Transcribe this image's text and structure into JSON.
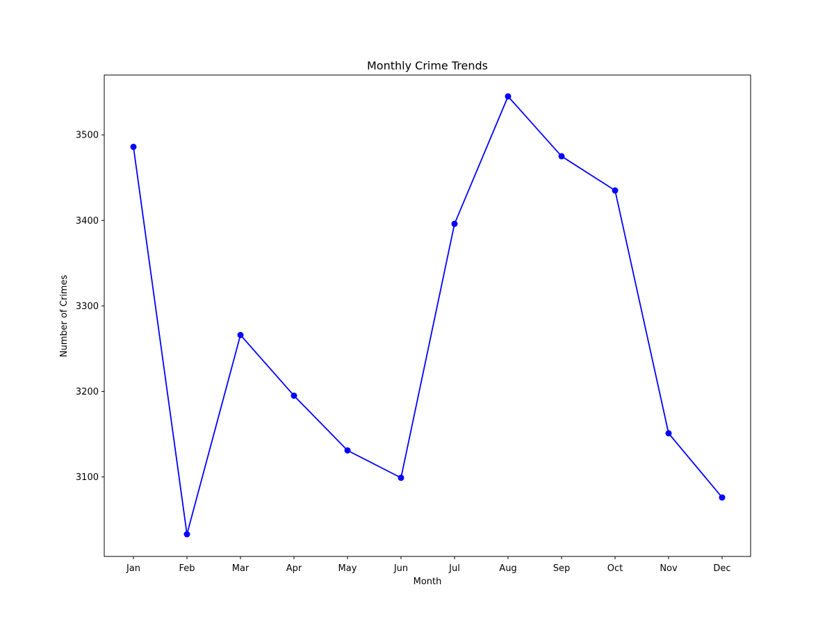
{
  "chart_data": {
    "type": "line",
    "title": "Monthly Crime Trends",
    "xlabel": "Month",
    "ylabel": "Number of Crimes",
    "categories": [
      "Jan",
      "Feb",
      "Mar",
      "Apr",
      "May",
      "Jun",
      "Jul",
      "Aug",
      "Sep",
      "Oct",
      "Nov",
      "Dec"
    ],
    "series": [
      {
        "values": [
          3486,
          3033,
          3266,
          3195,
          3131,
          3099,
          3396,
          3545,
          3475,
          3435,
          3151,
          3076
        ],
        "color": "#0000ff",
        "marker": "circle"
      }
    ],
    "yticks": [
      3100,
      3200,
      3300,
      3400,
      3500
    ],
    "ytick_labels": [
      "3100",
      "3200",
      "3300",
      "3400",
      "3500"
    ],
    "ylim": [
      3007,
      3570
    ],
    "grid": false,
    "legend": "none"
  }
}
